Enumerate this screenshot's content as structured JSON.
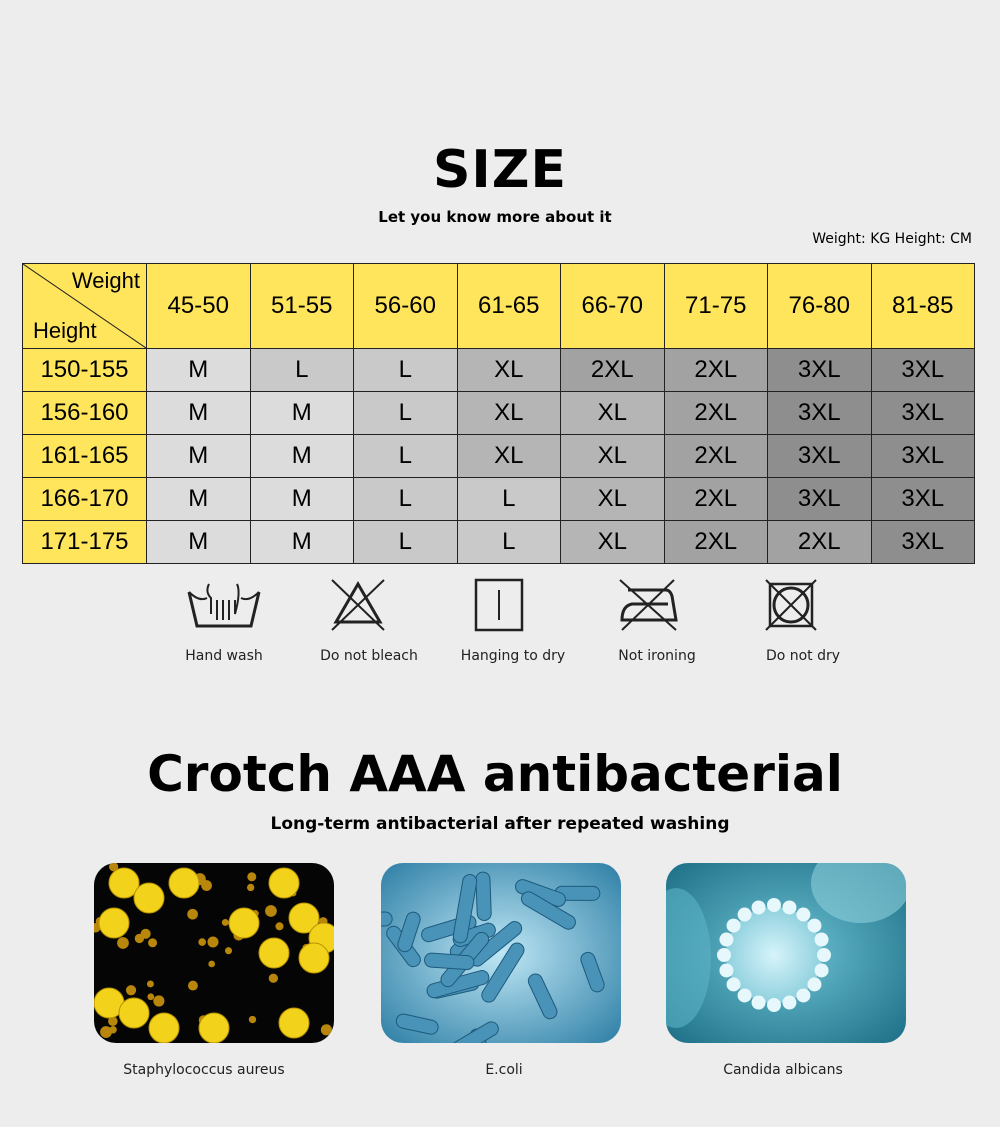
{
  "title": "SIZE",
  "subtitle": "Let you know more about it",
  "units": "Weight: KG  Height: CM",
  "table": {
    "corner_weight": "Weight",
    "corner_height": "Height",
    "weights": [
      "45-50",
      "51-55",
      "56-60",
      "61-65",
      "66-70",
      "71-75",
      "76-80",
      "81-85"
    ],
    "rows": [
      {
        "height": "150-155",
        "sizes": [
          "M",
          "L",
          "L",
          "XL",
          "2XL",
          "2XL",
          "3XL",
          "3XL"
        ]
      },
      {
        "height": "156-160",
        "sizes": [
          "M",
          "M",
          "L",
          "XL",
          "XL",
          "2XL",
          "3XL",
          "3XL"
        ]
      },
      {
        "height": "161-165",
        "sizes": [
          "M",
          "M",
          "L",
          "XL",
          "XL",
          "2XL",
          "3XL",
          "3XL"
        ]
      },
      {
        "height": "166-170",
        "sizes": [
          "M",
          "M",
          "L",
          "L",
          "XL",
          "2XL",
          "3XL",
          "3XL"
        ]
      },
      {
        "height": "171-175",
        "sizes": [
          "M",
          "M",
          "L",
          "L",
          "XL",
          "2XL",
          "2XL",
          "3XL"
        ]
      }
    ],
    "header_color": "#ffe55c",
    "size_colors": {
      "M": "#dcdcdc",
      "L": "#c9c9c9",
      "XL": "#b5b5b5",
      "2XL": "#a2a2a2",
      "3XL": "#8e8e8e"
    }
  },
  "care": [
    {
      "icon": "hand-wash-icon",
      "label": "Hand wash"
    },
    {
      "icon": "no-bleach-icon",
      "label": "Do not bleach"
    },
    {
      "icon": "hang-dry-icon",
      "label": "Hanging to dry"
    },
    {
      "icon": "no-iron-icon",
      "label": "Not ironing"
    },
    {
      "icon": "no-dry-icon",
      "label": "Do not dry"
    }
  ],
  "title2": "Crotch AAA antibacterial",
  "subtitle2": "Long-term antibacterial after repeated washing",
  "bacteria": [
    {
      "label": "Staphylococcus aureus"
    },
    {
      "label": "E.coli"
    },
    {
      "label": "Candida albicans"
    }
  ]
}
